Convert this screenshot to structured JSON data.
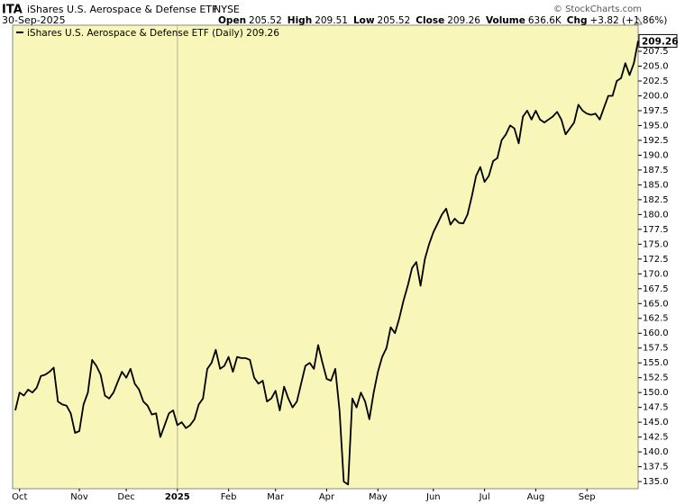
{
  "chart_data": {
    "type": "line",
    "symbol": "ITA",
    "title": "iShares U.S. Aerospace & Defense ETF",
    "exchange": "NYSE",
    "date": "30-Sep-2025",
    "quote": [
      {
        "label": "Open",
        "value": "205.52"
      },
      {
        "label": "High",
        "value": "209.51"
      },
      {
        "label": "Low",
        "value": "205.52"
      },
      {
        "label": "Close",
        "value": "209.26"
      },
      {
        "label": "Volume",
        "value": "636.6K"
      },
      {
        "label": "Chg",
        "value": "+3.82 (+1.86%)"
      }
    ],
    "credit": "© StockCharts.com",
    "categories": [
      null,
      "Oct",
      null,
      null,
      null,
      null,
      null,
      null,
      null,
      null,
      null,
      null,
      null,
      null,
      null,
      "Nov",
      null,
      null,
      null,
      null,
      null,
      null,
      null,
      null,
      null,
      null,
      "Dec",
      null,
      null,
      null,
      null,
      null,
      null,
      null,
      null,
      null,
      null,
      null,
      "2025",
      null,
      null,
      null,
      null,
      null,
      null,
      null,
      null,
      null,
      null,
      null,
      "Feb",
      null,
      null,
      null,
      null,
      null,
      null,
      null,
      null,
      null,
      null,
      "Mar",
      null,
      null,
      null,
      null,
      null,
      null,
      null,
      null,
      null,
      null,
      null,
      "Apr",
      null,
      null,
      null,
      null,
      null,
      null,
      null,
      null,
      null,
      null,
      null,
      "May",
      null,
      null,
      null,
      null,
      null,
      null,
      null,
      null,
      null,
      null,
      null,
      null,
      "Jun",
      null,
      null,
      null,
      null,
      null,
      null,
      null,
      null,
      null,
      null,
      null,
      "Jul",
      null,
      null,
      null,
      null,
      null,
      null,
      null,
      null,
      null,
      null,
      null,
      "Aug",
      null,
      null,
      null,
      null,
      null,
      null,
      null,
      null,
      null,
      null,
      null,
      "Sep",
      null,
      null,
      null,
      null,
      null,
      null,
      null,
      null,
      null,
      null,
      null,
      null
    ],
    "series": [
      {
        "name": "iShares U.S. Aerospace & Defense ETF (Daily) 209.26",
        "color": "#000000",
        "values": [
          147,
          150,
          149.5,
          150.5,
          150,
          150.8,
          152.8,
          153,
          153.5,
          154.2,
          148.5,
          148,
          147.8,
          146.5,
          143.2,
          143.5,
          148,
          150,
          155.5,
          154.5,
          153,
          149.5,
          149,
          150,
          151.8,
          153.5,
          152.5,
          154,
          151.5,
          150.5,
          148.5,
          147.8,
          146.3,
          146.5,
          142.5,
          144.5,
          146.5,
          147,
          144.5,
          145,
          144,
          144.5,
          145.5,
          148,
          149,
          154,
          155,
          157.2,
          154,
          154.5,
          156,
          153.5,
          156,
          155.8,
          155.8,
          155.5,
          152.5,
          151.5,
          152,
          148.5,
          149,
          150.3,
          147,
          151,
          149,
          147.5,
          148.5,
          151.5,
          154.5,
          155,
          154,
          158,
          155,
          152.3,
          152,
          154,
          147,
          135,
          134.5,
          149,
          147.5,
          150,
          148.5,
          145.5,
          150,
          153.5,
          156,
          157.5,
          161,
          160,
          162.5,
          165.5,
          168,
          171,
          172,
          168,
          172.5,
          175,
          177,
          178.5,
          180,
          181,
          178.3,
          179.3,
          178.6,
          178.5,
          180,
          183,
          186.5,
          188,
          185.5,
          186.5,
          189,
          189.5,
          192.5,
          193.5,
          195,
          194.5,
          192,
          196.5,
          197.5,
          196,
          197.5,
          196,
          195.5,
          196,
          196.5,
          197.3,
          196,
          193.5,
          194.5,
          195.5,
          198.5,
          197.5,
          197,
          196.8,
          197,
          196,
          198,
          200,
          200,
          202.5,
          203,
          205.5,
          203.5,
          205.5,
          209.26
        ]
      }
    ],
    "ylim": [
      133.8,
      211.9
    ],
    "yticks": [
      {
        "value": 135,
        "label": "135.0"
      },
      137.5,
      {
        "value": 140,
        "label": "140.0"
      },
      142.5,
      {
        "value": 145,
        "label": "145.0"
      },
      147.5,
      {
        "value": 150,
        "label": "150.0"
      },
      152.5,
      {
        "value": 155,
        "label": "155.0"
      },
      157.5,
      {
        "value": 160,
        "label": "160.0"
      },
      162.5,
      {
        "value": 165,
        "label": "165.0"
      },
      167.5,
      {
        "value": 170,
        "label": "170.0"
      },
      172.5,
      {
        "value": 175,
        "label": "175.0"
      },
      177.5,
      {
        "value": 180,
        "label": "180.0"
      },
      182.5,
      {
        "value": 185,
        "label": "185.0"
      },
      187.5,
      {
        "value": 190,
        "label": "190.0"
      },
      192.5,
      {
        "value": 195,
        "label": "195.0"
      },
      197.5,
      {
        "value": 200,
        "label": "200.0"
      },
      202.5,
      {
        "value": 205,
        "label": "205.0"
      },
      207.5
    ],
    "grid": false,
    "background": "#f8f6b8"
  }
}
